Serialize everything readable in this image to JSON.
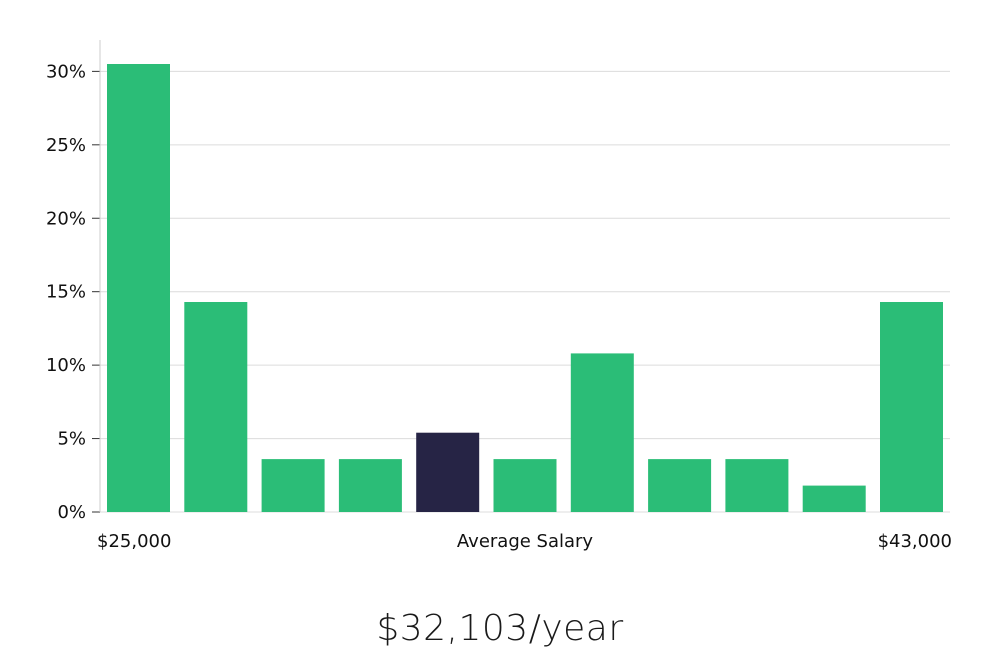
{
  "chart_data": {
    "type": "bar",
    "values": [
      30.5,
      14.3,
      3.6,
      3.6,
      5.4,
      3.6,
      10.8,
      3.6,
      3.6,
      1.8,
      14.3
    ],
    "highlight_index": 4,
    "ylim": [
      0,
      32
    ],
    "yticks": [
      0,
      5,
      10,
      15,
      20,
      25,
      30
    ],
    "ytick_suffix": "%",
    "grid": true,
    "x_label_left": "$25,000",
    "x_label_center": "Average Salary",
    "x_label_right": "$43,000"
  },
  "colors": {
    "bar": "#2bbd77",
    "highlight_bar": "#262445",
    "grid": "#dcdcdc",
    "axis": "#cccccc"
  },
  "summary": {
    "average_salary": "$32,103/year"
  }
}
